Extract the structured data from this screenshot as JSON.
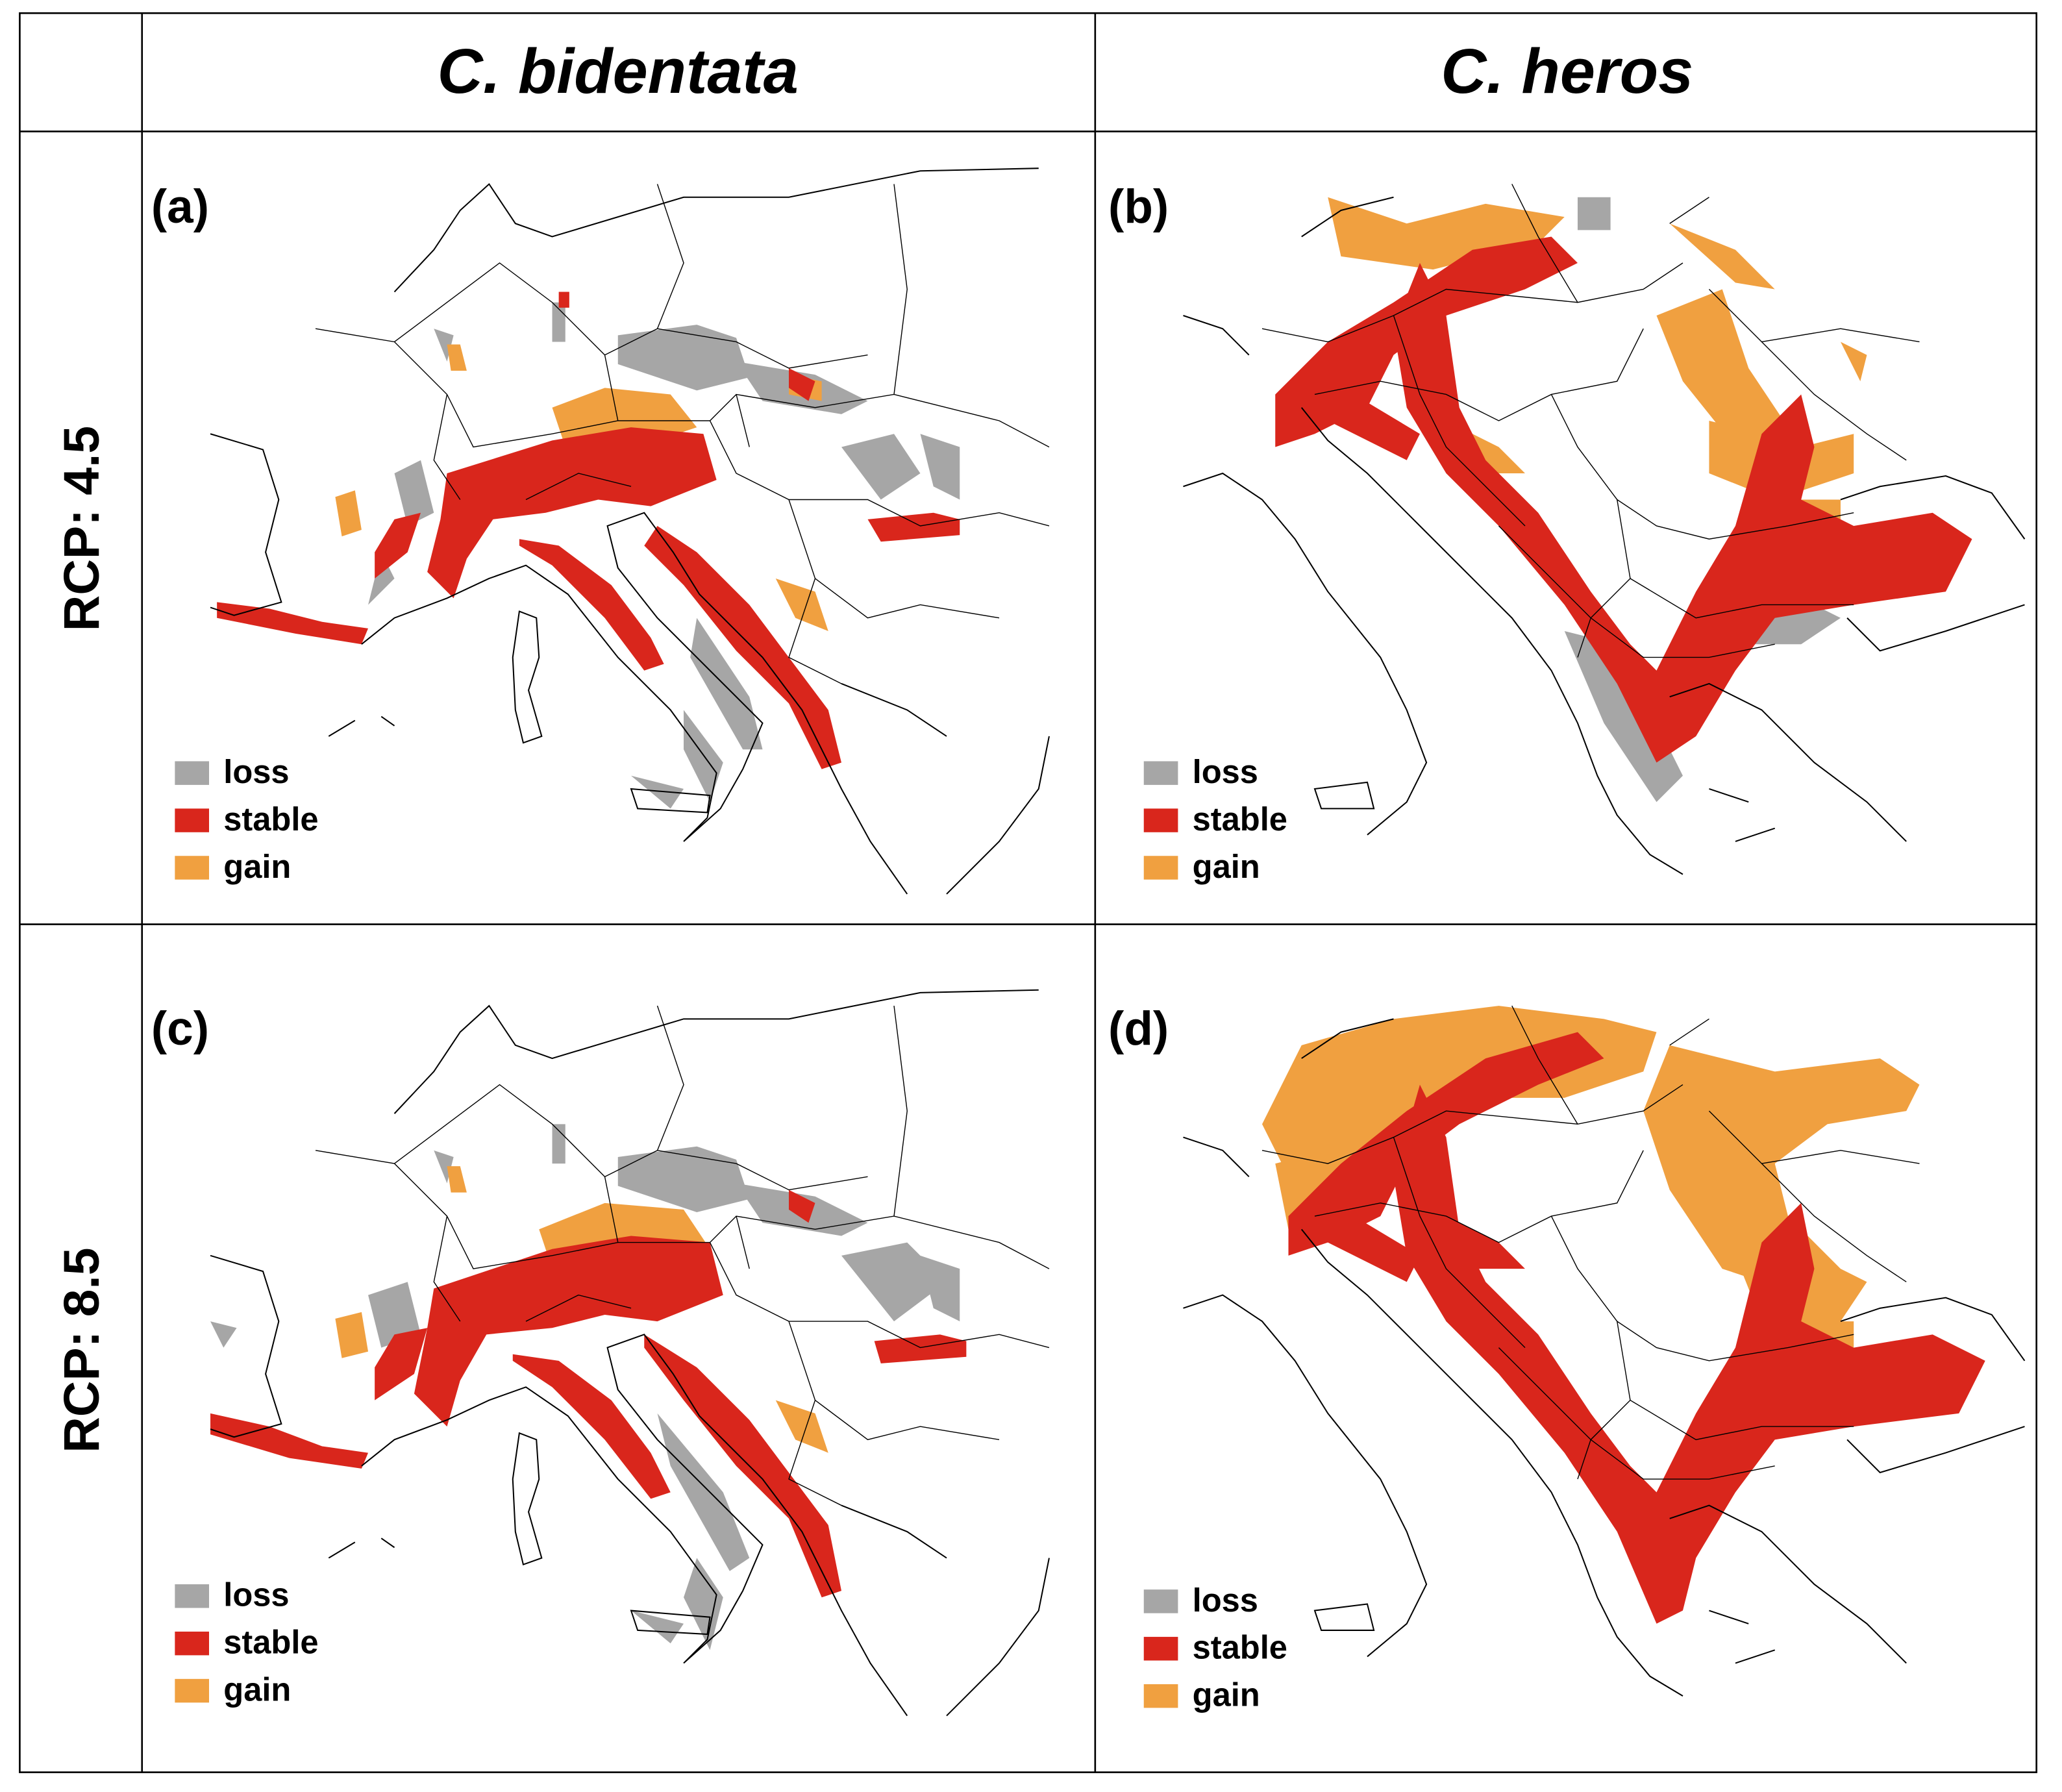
{
  "header": {
    "columns": [
      "C. bidentata",
      "C. heros"
    ]
  },
  "rows": [
    {
      "label": "RCP: 4.5",
      "panels": [
        {
          "label": "(a)"
        },
        {
          "label": "(b)"
        }
      ]
    },
    {
      "label": "RCP: 8.5",
      "panels": [
        {
          "label": "(c)"
        },
        {
          "label": "(d)"
        }
      ]
    }
  ],
  "legend": [
    {
      "label": "loss",
      "color": "#a6a6a6"
    },
    {
      "label": "stable",
      "color": "#d9261c"
    },
    {
      "label": "gain",
      "color": "#f0a040"
    }
  ]
}
